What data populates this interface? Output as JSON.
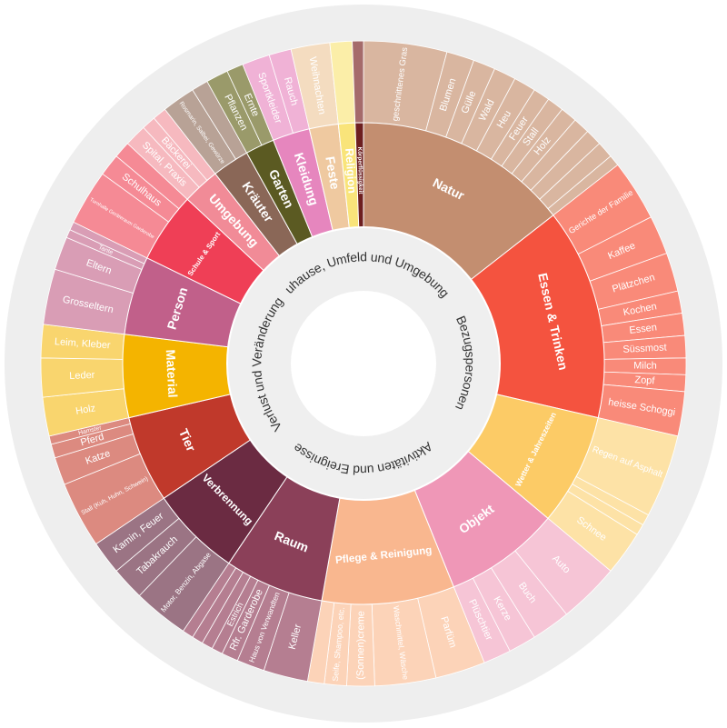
{
  "chart_data": {
    "type": "sunburst",
    "themes": [
      "Zuhause, Umfeld und Umgebung",
      "Bezugspersonen",
      "Aktivitäten und Ereignisse",
      "Verlust und Veränderung"
    ],
    "categories": [
      {
        "name": "Natur",
        "color": "#c38e70",
        "leaf_color": "#d9b6a0",
        "leaves": [
          {
            "name": "geschnittenes Gras",
            "value": 15
          },
          {
            "name": "Blumen",
            "value": 5
          },
          {
            "name": "Gülle",
            "value": 4
          },
          {
            "name": "Wald",
            "value": 4
          },
          {
            "name": "Heu",
            "value": 4
          },
          {
            "name": "Feuer",
            "value": 3
          },
          {
            "name": "Stall",
            "value": 3
          },
          {
            "name": "Holz",
            "value": 3
          },
          {
            "name": null,
            "value": 3
          },
          {
            "name": null,
            "value": 3
          },
          {
            "name": null,
            "value": 3
          },
          {
            "name": null,
            "value": 2
          }
        ]
      },
      {
        "name": "Essen & Trinken",
        "color": "#f4533f",
        "leaf_color": "#f98a79",
        "leaves": [
          {
            "name": "Gerichte der Familie",
            "value": 11
          },
          {
            "name": "Kaffee",
            "value": 7
          },
          {
            "name": "Plätzchen",
            "value": 7
          },
          {
            "name": "Kochen",
            "value": 4
          },
          {
            "name": "Essen",
            "value": 4
          },
          {
            "name": "Süssmost",
            "value": 4
          },
          {
            "name": "Milch",
            "value": 3
          },
          {
            "name": "Zopf",
            "value": 3
          },
          {
            "name": "heisse Schoggi",
            "value": 8
          }
        ]
      },
      {
        "name": "Wetter & Jahreszeiten",
        "color": "#fccb66",
        "leaf_color": "#fde2a6",
        "leaves": [
          {
            "name": "Regen auf Asphalt",
            "value": 15
          },
          {
            "name": null,
            "value": 2
          },
          {
            "name": null,
            "value": 2
          },
          {
            "name": "Schnee",
            "value": 8
          }
        ]
      },
      {
        "name": "Objekt",
        "color": "#ef97b7",
        "leaf_color": "#f6c5d6",
        "leaves": [
          {
            "name": "Auto",
            "value": 11
          },
          {
            "name": "Buch",
            "value": 7
          },
          {
            "name": "Kerze",
            "value": 5
          },
          {
            "name": "Plüschtier",
            "value": 5
          }
        ]
      },
      {
        "name": "Pflege & Reinigung",
        "color": "#f9b78f",
        "leaf_color": "#fcd3b8",
        "leaves": [
          {
            "name": "Parfüm",
            "value": 9
          },
          {
            "name": "Waschmittel, Wäsche",
            "value": 11
          },
          {
            "name": "(Sonnen)creme",
            "value": 5
          },
          {
            "name": "Seife, Shampoo, etc.",
            "value": 4
          },
          {
            "name": null,
            "value": 3
          }
        ]
      },
      {
        "name": "Raum",
        "color": "#8b4059",
        "leaf_color": "#b57e91",
        "leaves": [
          {
            "name": "Keller",
            "value": 8
          },
          {
            "name": "Haus von Verwandten",
            "value": 5
          },
          {
            "name": "Rfr. Garderobe",
            "value": 3
          },
          {
            "name": "Estrich",
            "value": 2
          },
          {
            "name": null,
            "value": 2
          },
          {
            "name": null,
            "value": 2
          },
          {
            "name": null,
            "value": 2
          }
        ]
      },
      {
        "name": "Verbrennung",
        "color": "#6b2b42",
        "leaf_color": "#9b7484",
        "leaves": [
          {
            "name": "Motor, Benzin, Abgase",
            "value": 10
          },
          {
            "name": "Tabakrauch",
            "value": 6
          },
          {
            "name": "Kamin, Feuer",
            "value": 6
          }
        ]
      },
      {
        "name": "Tier",
        "color": "#c0392b",
        "leaf_color": "#dc8a80",
        "leaves": [
          {
            "name": "Stall (Kuh, Huhn, Schwein)",
            "value": 12
          },
          {
            "name": "Katze",
            "value": 5
          },
          {
            "name": "Pferd",
            "value": 2.5
          },
          {
            "name": "Hamster",
            "value": 1.5
          }
        ]
      },
      {
        "name": "Material",
        "color": "#f4b400",
        "leaf_color": "#f9d56e",
        "leaves": [
          {
            "name": "Holz",
            "value": 7
          },
          {
            "name": "Leder",
            "value": 7
          },
          {
            "name": "Leim, Kleber",
            "value": 6
          }
        ]
      },
      {
        "name": "Person",
        "color": "#c1608a",
        "leaf_color": "#d99db5",
        "leaves": [
          {
            "name": "Grosseltern",
            "value": 10
          },
          {
            "name": "Eltern",
            "value": 6
          },
          {
            "name": "Tante",
            "value": 1.5
          },
          {
            "name": null,
            "value": 1.5
          }
        ]
      },
      {
        "name": "Schule & Sport",
        "color": "#ef3f56",
        "leaf_color": "#f58a95",
        "leaves": [
          {
            "name": "Turnhalle Geräteraum Garderobe",
            "value": 10
          },
          {
            "name": "Schulhaus",
            "value": 4
          },
          {
            "name": null,
            "value": 3
          }
        ]
      },
      {
        "name": "Umgebung",
        "color": "#f18b97",
        "leaf_color": "#f6b9bf",
        "leaves": [
          {
            "name": "Spital, Praxis",
            "value": 4
          },
          {
            "name": "Bäckerei",
            "value": 2.5
          },
          {
            "name": null,
            "value": 2.5
          }
        ]
      },
      {
        "name": "Kräuter",
        "color": "#8a6757",
        "leaf_color": "#b8a296",
        "leaves": [
          {
            "name": "Rosmarin, Salbei, Gewürze",
            "value": 6
          },
          {
            "name": null,
            "value": 3
          }
        ]
      },
      {
        "name": "Garten",
        "color": "#5b5a22",
        "leaf_color": "#9a9a6a",
        "leaves": [
          {
            "name": "Pflanzen",
            "value": 4
          },
          {
            "name": "Ernte",
            "value": 3
          }
        ]
      },
      {
        "name": "Kleidung",
        "color": "#e686be",
        "leaf_color": "#f0b2d6",
        "leaves": [
          {
            "name": "Sportkleider",
            "value": 5
          },
          {
            "name": "Rauch",
            "value": 4
          }
        ]
      },
      {
        "name": "Feste",
        "color": "#efc9a0",
        "leaf_color": "#f4dcc0",
        "leaves": [
          {
            "name": "Weihnachten",
            "value": 7
          }
        ]
      },
      {
        "name": "Religion",
        "color": "#f9e47a",
        "leaf_color": "#fbeea8",
        "leaves": [
          {
            "name": null,
            "value": 4
          }
        ]
      },
      {
        "name": "Körperflüssigkeit",
        "color": "#6d1f20",
        "leaf_color": "#a56b6b",
        "leaves": [
          {
            "name": null,
            "value": 2
          }
        ]
      }
    ]
  }
}
